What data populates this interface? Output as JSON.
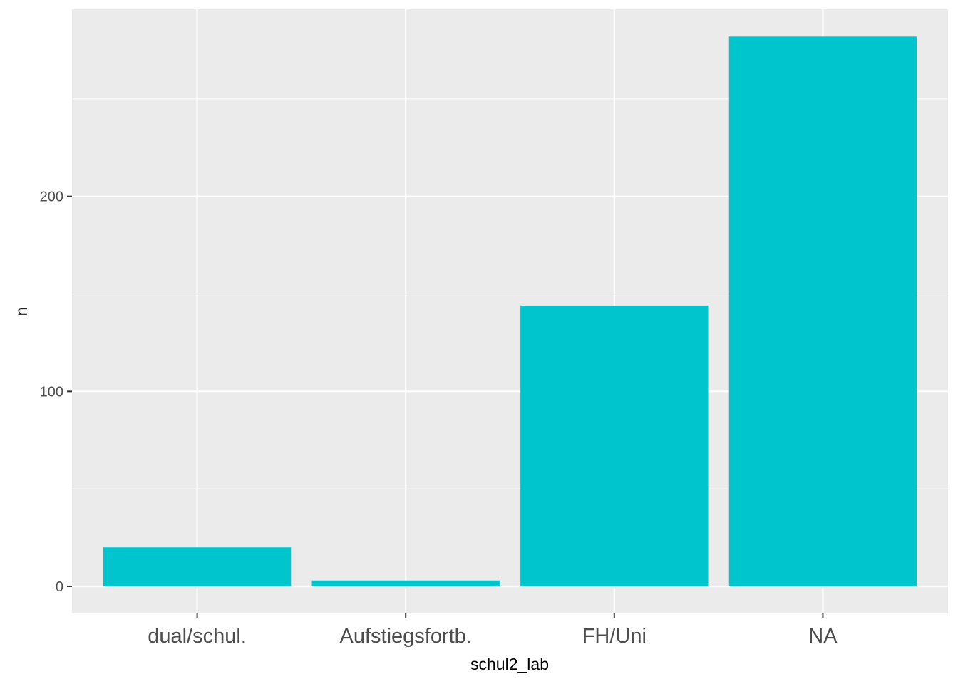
{
  "chart_data": {
    "type": "bar",
    "title": "",
    "xlabel": "schul2_lab",
    "ylabel": "n",
    "categories": [
      "dual/schul.",
      "Aufstiegsfortb.",
      "FH/Uni",
      "NA"
    ],
    "values": [
      20,
      3,
      144,
      282
    ],
    "ylim": [
      -13.9,
      296
    ],
    "y_ticks": [
      0,
      100,
      200
    ],
    "y_tick_labels": [
      "0",
      "100",
      "200"
    ],
    "grid": true,
    "bar_color": "#00C5CD",
    "panel_color": "#EBEBEB",
    "grid_color": "#FFFFFF",
    "legend": "none"
  }
}
